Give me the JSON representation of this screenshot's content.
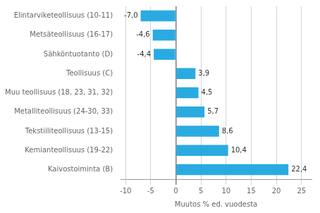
{
  "chart_data": {
    "type": "bar",
    "orientation": "horizontal",
    "categories": [
      "Elintarviketeollisuus (10-11)",
      "Metsäteollisuus (16-17)",
      "Sähköntuotanto (D)",
      "Teollisuus (C)",
      "Muu teollisuus (18, 23, 31, 32)",
      "Metalliteollisuus (24-30, 33)",
      "Tekstiiliteollisuus (13-15)",
      "Kemianteollisuus (19-22)",
      "Kaivostoiminta (B)"
    ],
    "values": [
      -7.0,
      -4.6,
      -4.4,
      3.9,
      4.5,
      5.7,
      8.6,
      10.4,
      22.4
    ],
    "value_labels": [
      "-7,0",
      "-4,6",
      "-4,4",
      "3,9",
      "4,5",
      "5,7",
      "8,6",
      "10,4",
      "22,4"
    ],
    "color": "#29abe2",
    "xlabel": "Muutos % ed. vuodesta",
    "xlim": [
      -11,
      27
    ],
    "xticks": [
      -10,
      -5,
      0,
      5,
      10,
      15,
      20,
      25
    ],
    "grid": true,
    "data_labels": true
  }
}
